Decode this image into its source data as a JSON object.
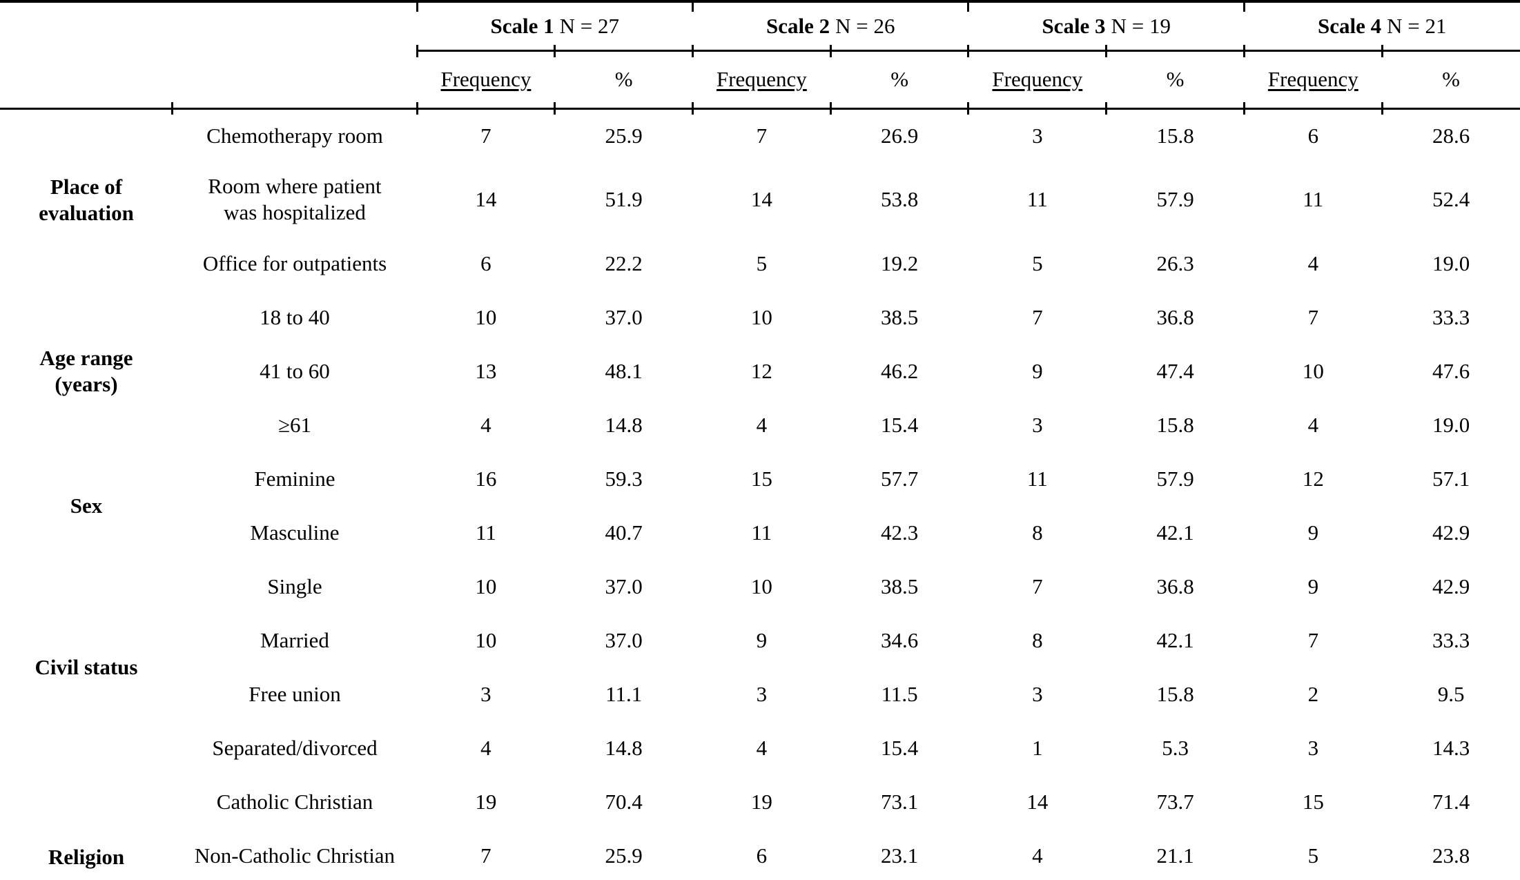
{
  "table": {
    "scale_groups": [
      {
        "name": "Scale 1",
        "n_label": "N = 27"
      },
      {
        "name": "Scale 2",
        "n_label": "N = 26"
      },
      {
        "name": "Scale 3",
        "n_label": "N = 19"
      },
      {
        "name": "Scale 4",
        "n_label": "N = 21"
      }
    ],
    "sub_headers": {
      "frequency": "Frequency",
      "percent": "%"
    },
    "groups": [
      {
        "label": "Place of\nevaluation",
        "rows": [
          {
            "category": "Chemotherapy room",
            "values": [
              "7",
              "25.9",
              "7",
              "26.9",
              "3",
              "15.8",
              "6",
              "28.6"
            ]
          },
          {
            "category": "Room where patient\nwas hospitalized",
            "tall": true,
            "values": [
              "14",
              "51.9",
              "14",
              "53.8",
              "11",
              "57.9",
              "11",
              "52.4"
            ]
          },
          {
            "category": "Office for outpatients",
            "values": [
              "6",
              "22.2",
              "5",
              "19.2",
              "5",
              "26.3",
              "4",
              "19.0"
            ]
          }
        ]
      },
      {
        "label": "Age range\n(years)",
        "rows": [
          {
            "category": "18 to 40",
            "values": [
              "10",
              "37.0",
              "10",
              "38.5",
              "7",
              "36.8",
              "7",
              "33.3"
            ]
          },
          {
            "category": "41 to 60",
            "values": [
              "13",
              "48.1",
              "12",
              "46.2",
              "9",
              "47.4",
              "10",
              "47.6"
            ]
          },
          {
            "category": "≥61",
            "values": [
              "4",
              "14.8",
              "4",
              "15.4",
              "3",
              "15.8",
              "4",
              "19.0"
            ]
          }
        ]
      },
      {
        "label": "Sex",
        "rows": [
          {
            "category": "Feminine",
            "values": [
              "16",
              "59.3",
              "15",
              "57.7",
              "11",
              "57.9",
              "12",
              "57.1"
            ]
          },
          {
            "category": "Masculine",
            "values": [
              "11",
              "40.7",
              "11",
              "42.3",
              "8",
              "42.1",
              "9",
              "42.9"
            ]
          }
        ]
      },
      {
        "label": "Civil status",
        "rows": [
          {
            "category": "Single",
            "values": [
              "10",
              "37.0",
              "10",
              "38.5",
              "7",
              "36.8",
              "9",
              "42.9"
            ]
          },
          {
            "category": "Married",
            "values": [
              "10",
              "37.0",
              "9",
              "34.6",
              "8",
              "42.1",
              "7",
              "33.3"
            ]
          },
          {
            "category": "Free union",
            "values": [
              "3",
              "11.1",
              "3",
              "11.5",
              "3",
              "15.8",
              "2",
              "9.5"
            ]
          },
          {
            "category": "Separated/divorced",
            "values": [
              "4",
              "14.8",
              "4",
              "15.4",
              "1",
              "5.3",
              "3",
              "14.3"
            ]
          }
        ]
      },
      {
        "label": "Religion",
        "align": "bottom",
        "rows": [
          {
            "category": "Catholic Christian",
            "values": [
              "19",
              "70.4",
              "19",
              "73.1",
              "14",
              "73.7",
              "15",
              "71.4"
            ]
          },
          {
            "category": "Non-Catholic Christian",
            "values": [
              "7",
              "25.9",
              "6",
              "23.1",
              "4",
              "21.1",
              "5",
              "23.8"
            ]
          }
        ]
      }
    ]
  }
}
